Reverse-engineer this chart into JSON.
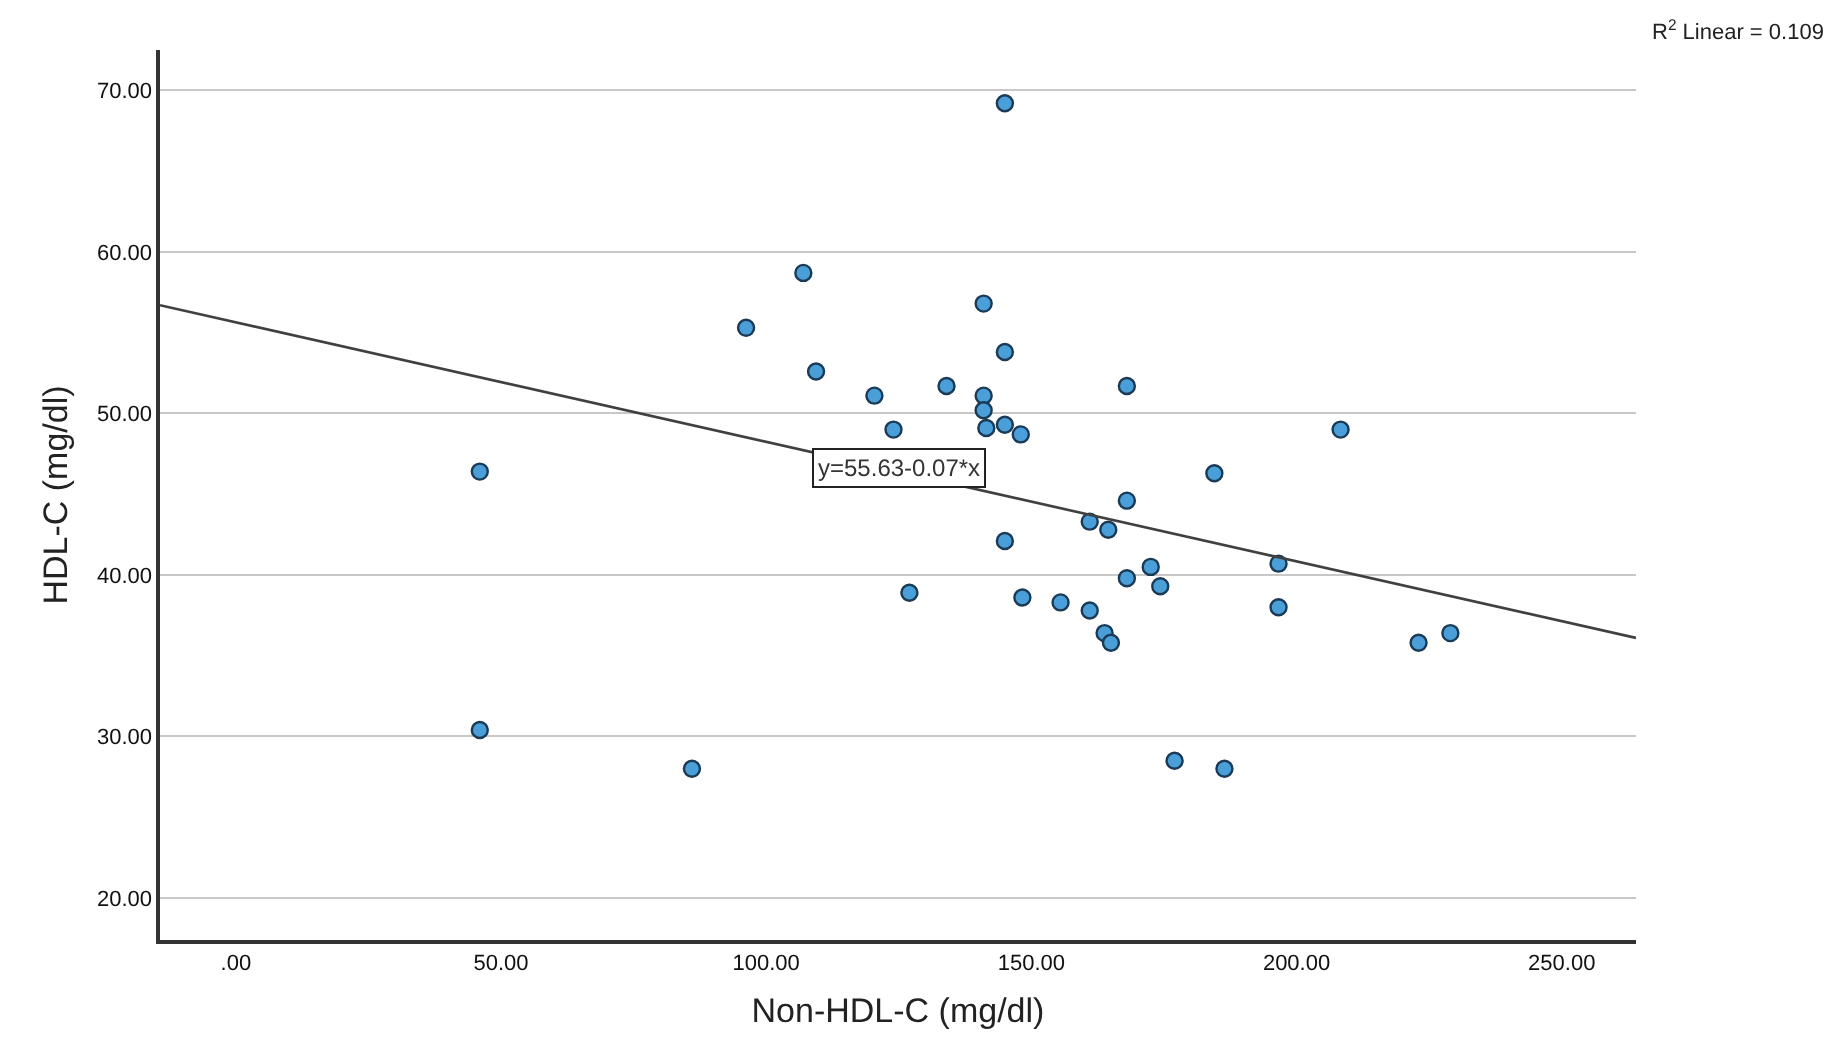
{
  "chart_data": {
    "type": "scatter",
    "xlabel": "Non-HDL-C (mg/dl)",
    "ylabel": "HDL-C (mg/dl)",
    "series": [
      {
        "color": "#4a9fd8",
        "marker": "circle",
        "x": [
          46,
          46,
          86,
          96.2,
          107,
          109.4,
          120.4,
          124,
          127,
          134,
          141,
          141,
          141,
          141.5,
          145,
          145,
          145,
          148,
          145,
          148.3,
          155.5,
          161,
          161,
          164.5,
          163.8,
          165,
          168,
          168,
          168,
          172.5,
          174.3,
          177,
          186.4,
          184.5,
          196.6,
          196.6,
          208.3,
          223,
          229
        ],
        "values": [
          46.4,
          30.4,
          28.0,
          55.3,
          58.7,
          52.6,
          51.1,
          49.0,
          38.9,
          51.7,
          56.8,
          51.1,
          50.2,
          49.1,
          49.3,
          53.8,
          69.2,
          48.7,
          42.1,
          38.6,
          38.3,
          37.8,
          43.3,
          42.8,
          36.4,
          35.8,
          51.7,
          44.6,
          39.8,
          40.5,
          39.3,
          28.5,
          28.0,
          46.3,
          40.7,
          38.0,
          49.0,
          35.8,
          36.4
        ]
      },
      {
        "type": "line",
        "color": "#404040",
        "line_style": "solid",
        "x": [
          -14.3,
          264
        ],
        "values": [
          56.7,
          36.1
        ]
      }
    ],
    "annotations": [
      {
        "text": "y=55.63-0.07*x",
        "x": 125,
        "y": 46.6
      },
      "R$^{2}$ Linear = 0.109"
    ],
    "xlim": [
      -14.3,
      264
    ],
    "ylim": [
      17.4,
      72.5
    ],
    "xticks": [
      {
        "value": 0,
        "label": ".00"
      },
      {
        "value": 50,
        "label": "50.00"
      },
      {
        "value": 100,
        "label": "100.00"
      },
      {
        "value": 150,
        "label": "150.00"
      },
      {
        "value": 200,
        "label": "200.00"
      },
      {
        "value": 250,
        "label": "250.00"
      }
    ],
    "yticks": [
      {
        "value": 20,
        "label": "20.00"
      },
      {
        "value": 30,
        "label": "30.00"
      },
      {
        "value": 40,
        "label": "40.00"
      },
      {
        "value": 50,
        "label": "50.00"
      },
      {
        "value": 60,
        "label": "60.00"
      },
      {
        "value": 70,
        "label": "70.00"
      }
    ],
    "grid": "y"
  }
}
